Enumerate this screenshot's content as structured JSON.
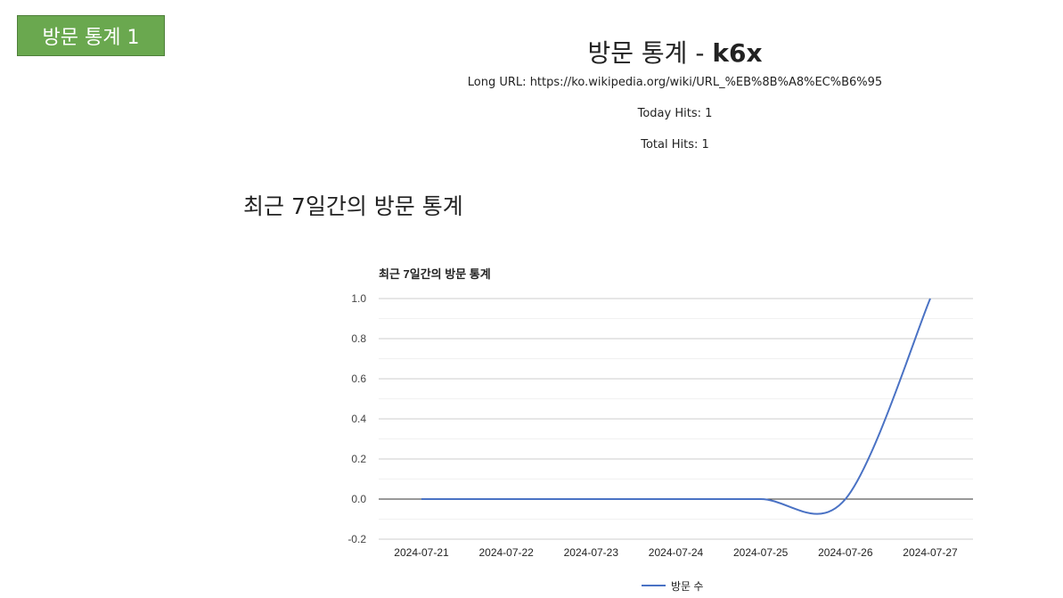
{
  "badge": {
    "label": "방문 통계 1"
  },
  "header": {
    "title": "방문 통계 - ",
    "slug": "k6x",
    "long_url": "Long URL: https://ko.wikipedia.org/wiki/URL_%EB%8B%A8%EC%B6%95",
    "today_hits": "Today Hits: 1",
    "total_hits": "Total Hits: 1"
  },
  "section": {
    "title": "최근 7일간의 방문 통계"
  },
  "chart_data": {
    "type": "line",
    "title": "최근 7일간의 방문 통계",
    "categories": [
      "2024-07-21",
      "2024-07-22",
      "2024-07-23",
      "2024-07-24",
      "2024-07-25",
      "2024-07-26",
      "2024-07-27"
    ],
    "series": [
      {
        "name": "방문 수",
        "values": [
          0,
          0,
          0,
          0,
          0,
          0,
          1
        ],
        "color": "#4a72c4"
      }
    ],
    "ylim": [
      -0.2,
      1.0
    ],
    "yticks": [
      -0.2,
      0.0,
      0.2,
      0.4,
      0.6,
      0.8,
      1.0
    ],
    "grid": true,
    "legend": "bottom"
  }
}
